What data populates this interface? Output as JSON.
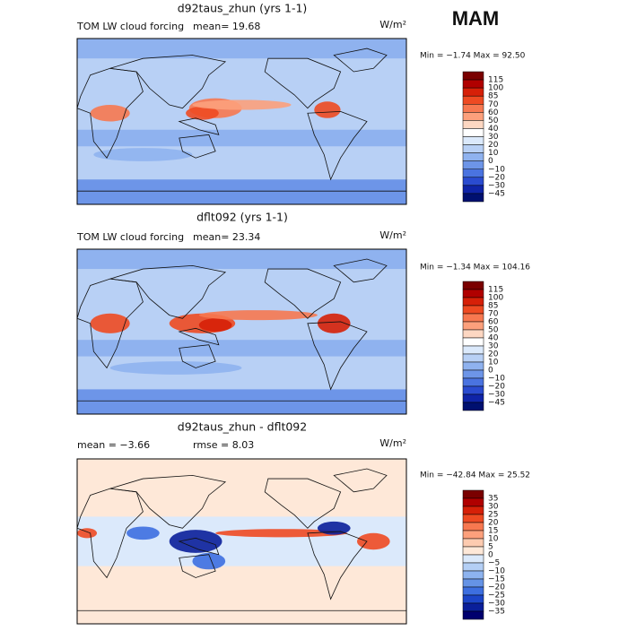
{
  "figure_label": "MAM",
  "panels": [
    {
      "title": "d92taus_zhun (yrs 1-1)",
      "left_label": "TOM LW cloud forcing",
      "center_label": "mean=  19.68",
      "units": "W/m²",
      "min_max": "Min =  −1.74 Max =  92.50",
      "colorbar_labels": [
        "115",
        "100",
        "85",
        "70",
        "60",
        "50",
        "40",
        "30",
        "20",
        "10",
        "0",
        "−10",
        "−20",
        "−30",
        "−45"
      ]
    },
    {
      "title": "dflt092 (yrs 1-1)",
      "left_label": "TOM LW cloud forcing",
      "center_label": "mean=  23.34",
      "units": "W/m²",
      "min_max": "Min =  −1.34 Max = 104.16",
      "colorbar_labels": [
        "115",
        "100",
        "85",
        "70",
        "60",
        "50",
        "40",
        "30",
        "20",
        "10",
        "0",
        "−10",
        "−20",
        "−30",
        "−45"
      ]
    },
    {
      "title": "d92taus_zhun - dflt092",
      "left_label": "mean =  −3.66",
      "center_label": "rmse =   8.03",
      "units": "W/m²",
      "min_max": "Min = −42.84 Max =  25.52",
      "colorbar_labels": [
        "35",
        "30",
        "25",
        "20",
        "15",
        "10",
        "5",
        "0",
        "−5",
        "−10",
        "−15",
        "−20",
        "−25",
        "−30",
        "−35"
      ]
    }
  ]
}
